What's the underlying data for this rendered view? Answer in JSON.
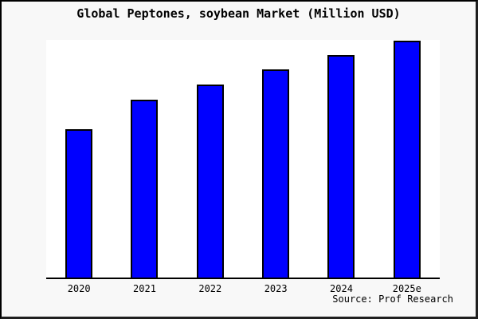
{
  "colors": {
    "figure_background": "#f8f8f8",
    "plot_background": "#ffffff",
    "bar_fill": "#0000ff",
    "bar_border": "#000000",
    "axis_line": "#000000",
    "text": "#000000"
  },
  "chart_data": {
    "type": "bar",
    "title": "Global Peptones, soybean Market (Million USD)",
    "categories": [
      "2020",
      "2021",
      "2022",
      "2023",
      "2024",
      "2025e"
    ],
    "values": [
      62.7,
      75.0,
      81.3,
      87.7,
      93.7,
      99.7
    ],
    "xlabel": "",
    "ylabel": "",
    "ylim": [
      0,
      100
    ],
    "grid": false,
    "legend": null,
    "bar_color": "#0000ff",
    "annotations": [
      "Source: Prof Research"
    ]
  }
}
